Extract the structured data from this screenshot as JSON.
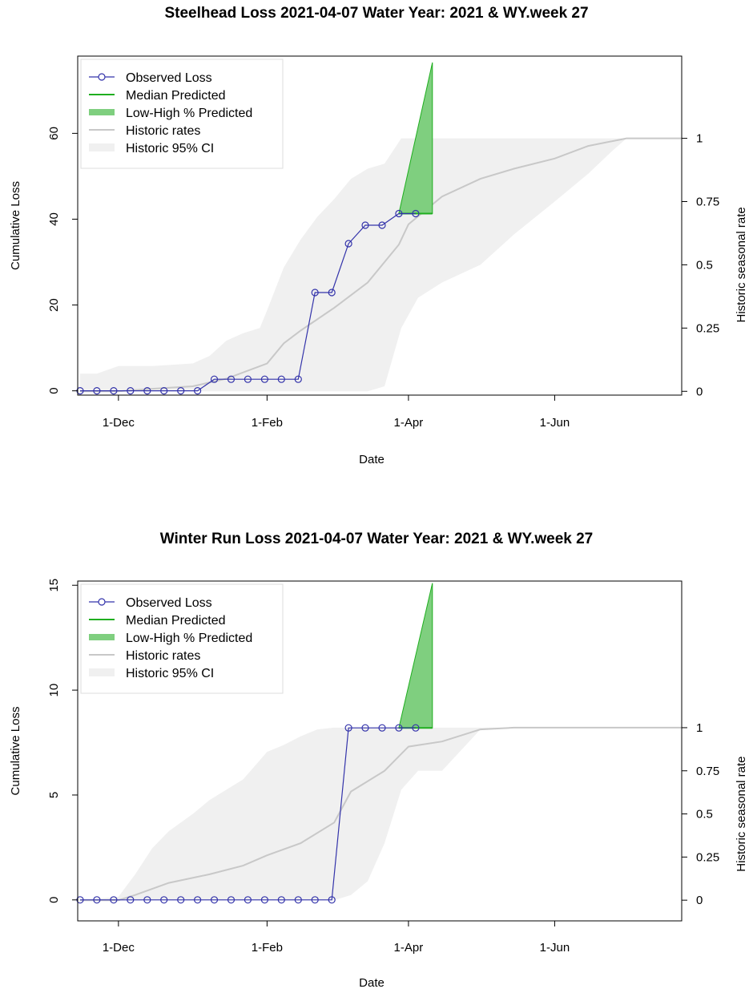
{
  "colors": {
    "observed": "#3333aa",
    "predicted_line": "#1fae1f",
    "predicted_fill": "#7fcf7f",
    "historic_line": "#c8c8c8",
    "historic_ci": "#f0f0f0"
  },
  "chart_data": [
    {
      "type": "line",
      "title": "Steelhead Loss 2021-04-07  Water Year: 2021 & WY.week 27",
      "xlabel": "Date",
      "ylabel": "Cumulative Loss",
      "y2label": "Historic seasonal rate",
      "x_ticks": [
        {
          "label": "1-Dec",
          "date": "2020-12-01"
        },
        {
          "label": "1-Feb",
          "date": "2021-02-01"
        },
        {
          "label": "1-Apr",
          "date": "2021-04-01"
        },
        {
          "label": "1-Jun",
          "date": "2021-06-01"
        }
      ],
      "xlim": [
        "2020-11-14",
        "2021-07-24"
      ],
      "ylim": [
        -1,
        78
      ],
      "y_ticks": [
        0,
        20,
        40,
        60
      ],
      "y2lim": [
        -0.015,
        1.325
      ],
      "y2_ticks": [
        0,
        0.25,
        0.5,
        0.75,
        1
      ],
      "y2_tick_labels": [
        "0",
        "0.25",
        "0.5",
        "0.75",
        "1"
      ],
      "legend": {
        "position": "top-left",
        "entries": [
          "Observed Loss",
          "Median Predicted",
          "Low-High % Predicted",
          "Historic rates",
          "Historic 95% CI"
        ]
      },
      "series": [
        {
          "name": "Observed Loss",
          "x": [
            "2020-11-15",
            "2020-11-22",
            "2020-11-29",
            "2020-12-06",
            "2020-12-13",
            "2020-12-20",
            "2020-12-27",
            "2021-01-03",
            "2021-01-10",
            "2021-01-17",
            "2021-01-24",
            "2021-01-31",
            "2021-02-07",
            "2021-02-14",
            "2021-02-21",
            "2021-02-28",
            "2021-03-07",
            "2021-03-14",
            "2021-03-21",
            "2021-03-28",
            "2021-04-04"
          ],
          "y": [
            0,
            0,
            0,
            0,
            0,
            0,
            0,
            0,
            2.7,
            2.7,
            2.7,
            2.7,
            2.7,
            2.7,
            22.9,
            22.9,
            34.3,
            38.6,
            38.6,
            41.3,
            41.3
          ]
        },
        {
          "name": "Median Predicted",
          "x": [
            "2021-03-28",
            "2021-04-11"
          ],
          "y": [
            41.3,
            41.3
          ]
        },
        {
          "name": "Low-High % Predicted",
          "x": [
            "2021-03-28",
            "2021-04-11"
          ],
          "low": [
            41.3,
            41.3
          ],
          "high": [
            41.3,
            76.5
          ]
        },
        {
          "name": "Historic rates",
          "x": [
            "2020-11-15",
            "2020-12-01",
            "2020-12-15",
            "2021-01-01",
            "2021-01-15",
            "2021-02-01",
            "2021-02-08",
            "2021-02-15",
            "2021-03-01",
            "2021-03-15",
            "2021-03-28",
            "2021-04-01",
            "2021-04-15",
            "2021-05-01",
            "2021-05-15",
            "2021-06-01",
            "2021-06-15",
            "2021-07-01",
            "2021-07-24"
          ],
          "y": [
            0,
            0,
            0.01,
            0.02,
            0.05,
            0.11,
            0.19,
            0.24,
            0.33,
            0.43,
            0.58,
            0.66,
            0.77,
            0.84,
            0.88,
            0.92,
            0.97,
            1,
            1
          ]
        },
        {
          "name": "Historic 95% CI",
          "x": [
            "2020-11-15",
            "2020-11-22",
            "2020-12-01",
            "2020-12-15",
            "2021-01-01",
            "2021-01-08",
            "2021-01-15",
            "2021-01-22",
            "2021-01-29",
            "2021-02-01",
            "2021-02-08",
            "2021-02-15",
            "2021-02-22",
            "2021-03-01",
            "2021-03-08",
            "2021-03-15",
            "2021-03-22",
            "2021-03-29",
            "2021-04-05",
            "2021-04-15",
            "2021-05-01",
            "2021-05-15",
            "2021-06-01",
            "2021-06-15",
            "2021-06-25",
            "2021-07-01",
            "2021-07-24"
          ],
          "low": [
            0,
            0,
            0,
            0,
            0,
            0,
            0,
            0,
            0,
            0,
            0,
            0,
            0,
            0,
            0,
            0,
            0.02,
            0.25,
            0.37,
            0.43,
            0.5,
            0.62,
            0.75,
            0.86,
            0.95,
            1,
            1
          ],
          "high": [
            0.07,
            0.07,
            0.1,
            0.1,
            0.11,
            0.14,
            0.2,
            0.23,
            0.25,
            0.32,
            0.49,
            0.6,
            0.69,
            0.76,
            0.84,
            0.88,
            0.9,
            1,
            1,
            1,
            1,
            1,
            1,
            1,
            1,
            1,
            1
          ]
        }
      ]
    },
    {
      "type": "line",
      "title": "Winter Run Loss 2021-04-07  Water Year: 2021 & WY.week 27",
      "xlabel": "Date",
      "ylabel": "Cumulative Loss",
      "y2label": "Historic seasonal rate",
      "x_ticks": [
        {
          "label": "1-Dec",
          "date": "2020-12-01"
        },
        {
          "label": "1-Feb",
          "date": "2021-02-01"
        },
        {
          "label": "1-Apr",
          "date": "2021-04-01"
        },
        {
          "label": "1-Jun",
          "date": "2021-06-01"
        }
      ],
      "xlim": [
        "2020-11-14",
        "2021-07-24"
      ],
      "ylim": [
        -1,
        15.2
      ],
      "y_ticks": [
        0,
        5,
        10,
        15
      ],
      "y2lim": [
        -0.12,
        1.85
      ],
      "y2_ticks": [
        0,
        0.25,
        0.5,
        0.75,
        1
      ],
      "y2_tick_labels": [
        "0",
        "0.25",
        "0.5",
        "0.75",
        "1"
      ],
      "legend": {
        "position": "top-left",
        "entries": [
          "Observed Loss",
          "Median Predicted",
          "Low-High % Predicted",
          "Historic rates",
          "Historic 95% CI"
        ]
      },
      "series": [
        {
          "name": "Observed Loss",
          "x": [
            "2020-11-15",
            "2020-11-22",
            "2020-11-29",
            "2020-12-06",
            "2020-12-13",
            "2020-12-20",
            "2020-12-27",
            "2021-01-03",
            "2021-01-10",
            "2021-01-17",
            "2021-01-24",
            "2021-01-31",
            "2021-02-07",
            "2021-02-14",
            "2021-02-21",
            "2021-02-28",
            "2021-03-07",
            "2021-03-14",
            "2021-03-21",
            "2021-03-28",
            "2021-04-04"
          ],
          "y": [
            0,
            0,
            0,
            0,
            0,
            0,
            0,
            0,
            0,
            0,
            0,
            0,
            0,
            0,
            0,
            0,
            8.2,
            8.2,
            8.2,
            8.2,
            8.2
          ]
        },
        {
          "name": "Median Predicted",
          "x": [
            "2021-03-28",
            "2021-04-11"
          ],
          "y": [
            8.2,
            8.2
          ]
        },
        {
          "name": "Low-High % Predicted",
          "x": [
            "2021-03-28",
            "2021-04-11"
          ],
          "low": [
            8.2,
            8.2
          ],
          "high": [
            8.2,
            15.1
          ]
        },
        {
          "name": "Historic rates",
          "x": [
            "2020-11-15",
            "2020-12-01",
            "2020-12-08",
            "2020-12-22",
            "2021-01-08",
            "2021-01-22",
            "2021-02-01",
            "2021-02-15",
            "2021-03-01",
            "2021-03-08",
            "2021-03-22",
            "2021-04-01",
            "2021-04-15",
            "2021-05-01",
            "2021-05-15",
            "2021-06-01",
            "2021-07-24"
          ],
          "y": [
            0,
            0,
            0.03,
            0.1,
            0.15,
            0.2,
            0.26,
            0.33,
            0.45,
            0.63,
            0.75,
            0.89,
            0.92,
            0.99,
            1,
            1,
            1
          ]
        },
        {
          "name": "Historic 95% CI",
          "x": [
            "2020-11-15",
            "2020-12-01",
            "2020-12-08",
            "2020-12-15",
            "2020-12-22",
            "2021-01-01",
            "2021-01-08",
            "2021-01-15",
            "2021-01-22",
            "2021-02-01",
            "2021-02-08",
            "2021-02-15",
            "2021-02-22",
            "2021-03-01",
            "2021-03-08",
            "2021-03-15",
            "2021-03-22",
            "2021-03-29",
            "2021-04-05",
            "2021-04-15",
            "2021-05-01",
            "2021-05-15",
            "2021-06-01",
            "2021-07-24"
          ],
          "low": [
            0,
            0,
            0,
            0,
            0,
            0,
            0,
            0,
            0,
            0,
            0,
            0,
            0,
            0,
            0.03,
            0.11,
            0.33,
            0.64,
            0.75,
            0.75,
            0.99,
            1,
            1,
            1
          ],
          "high": [
            0,
            0.02,
            0.15,
            0.3,
            0.4,
            0.5,
            0.58,
            0.64,
            0.7,
            0.86,
            0.9,
            0.95,
            0.99,
            1,
            1,
            1,
            1,
            1,
            1,
            1,
            1,
            1,
            1,
            1
          ]
        }
      ]
    }
  ]
}
